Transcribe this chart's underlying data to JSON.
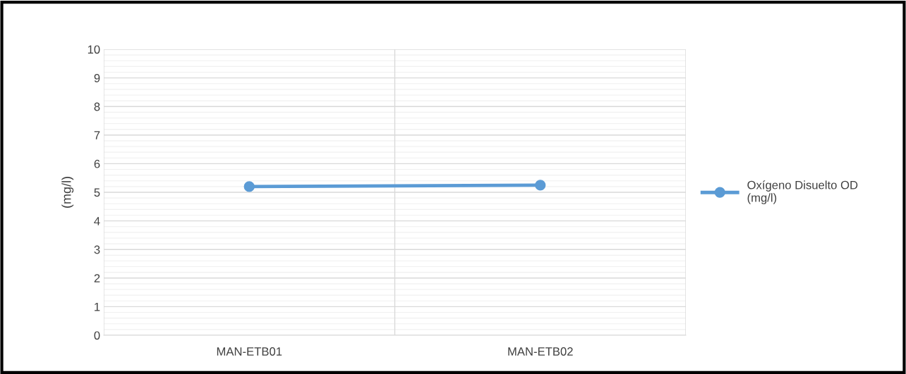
{
  "chart_data": {
    "type": "line",
    "ylabel": "(mg/l)",
    "categories": [
      "MAN-ETB01",
      "MAN-ETB02"
    ],
    "series": [
      {
        "name": "Oxígeno Disuelto OD\n(mg/l)",
        "color": "#5b9bd5",
        "values": [
          5.2,
          5.25
        ]
      }
    ],
    "ylim": [
      0,
      10
    ],
    "yticks": [
      0,
      1,
      2,
      3,
      4,
      5,
      6,
      7,
      8,
      9,
      10
    ],
    "grid": true,
    "legend": "right",
    "marker": "circle",
    "line_style": "solid"
  }
}
